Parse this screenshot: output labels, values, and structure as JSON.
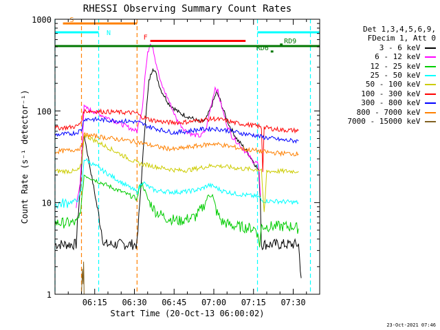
{
  "chart_data": {
    "type": "line",
    "title": "RHESSI Observing Summary Count Rates",
    "xlabel": "Start Time (20-Oct-13 06:00:02)",
    "ylabel": "Count Rate (s⁻¹ detector⁻¹)",
    "yscale": "log",
    "ylim": [
      1,
      1000
    ],
    "xlim_minutes": [
      0,
      100
    ],
    "x_ticks": [
      {
        "t": 15,
        "label": "06:15"
      },
      {
        "t": 30,
        "label": "06:30"
      },
      {
        "t": 45,
        "label": "06:45"
      },
      {
        "t": 60,
        "label": "07:00"
      },
      {
        "t": 75,
        "label": "07:15"
      },
      {
        "t": 90,
        "label": "07:30"
      }
    ],
    "y_ticks": [
      {
        "v": 1,
        "label": "1"
      },
      {
        "v": 10,
        "label": "10"
      },
      {
        "v": 100,
        "label": "100"
      },
      {
        "v": 1000,
        "label": "1000"
      }
    ],
    "legend_header": [
      "Det 1,3,4,5,6,9,",
      "FDecim 1, Att 0"
    ],
    "series": [
      {
        "name": "3 - 6 keV",
        "color": "#000000",
        "points": [
          [
            0,
            3.5
          ],
          [
            8,
            3.5
          ],
          [
            8.5,
            6
          ],
          [
            9.5,
            14
          ],
          [
            10.5,
            40
          ],
          [
            11,
            55
          ],
          [
            18.5,
            3.5
          ],
          [
            31,
            3.5
          ],
          [
            34,
            70
          ],
          [
            35.5,
            210
          ],
          [
            37,
            300
          ],
          [
            38,
            260
          ],
          [
            40,
            170
          ],
          [
            43,
            120
          ],
          [
            47,
            95
          ],
          [
            51,
            85
          ],
          [
            55,
            75
          ],
          [
            57,
            80
          ],
          [
            59,
            110
          ],
          [
            61,
            160
          ],
          [
            62,
            140
          ],
          [
            64,
            95
          ],
          [
            66,
            68
          ],
          [
            69,
            48
          ],
          [
            72,
            38
          ],
          [
            75,
            28
          ],
          [
            77,
            22
          ],
          [
            77.6,
            10
          ],
          [
            78,
            3.5
          ],
          [
            92,
            3.5
          ],
          [
            93,
            1.5
          ]
        ]
      },
      {
        "name": "6 - 12 keV",
        "color": "#ff00ff",
        "points": [
          [
            8,
            9
          ],
          [
            9.5,
            16
          ],
          [
            10.5,
            60
          ],
          [
            11,
            110
          ],
          [
            31,
            60
          ],
          [
            33,
            110
          ],
          [
            34,
            240
          ],
          [
            35,
            420
          ],
          [
            36,
            560
          ],
          [
            37,
            500
          ],
          [
            38,
            350
          ],
          [
            40,
            200
          ],
          [
            43,
            130
          ],
          [
            46,
            80
          ],
          [
            49,
            62
          ],
          [
            52,
            55
          ],
          [
            55,
            53
          ],
          [
            57,
            62
          ],
          [
            58.5,
            100
          ],
          [
            60.5,
            180
          ],
          [
            61.5,
            165
          ],
          [
            63,
            110
          ],
          [
            65,
            70
          ],
          [
            67,
            52
          ],
          [
            70,
            42
          ],
          [
            73,
            33
          ],
          [
            75,
            28
          ],
          [
            76.5,
            27
          ],
          [
            77.2,
            20
          ],
          [
            77.6,
            12
          ]
        ]
      },
      {
        "name": "12 - 25 keV",
        "color": "#00cc00",
        "points": [
          [
            0,
            6
          ],
          [
            5,
            6
          ],
          [
            8,
            6
          ],
          [
            9,
            6.5
          ],
          [
            10,
            10
          ],
          [
            11,
            20
          ],
          [
            31,
            11
          ],
          [
            32,
            15
          ],
          [
            33,
            16
          ],
          [
            35,
            11
          ],
          [
            38,
            8
          ],
          [
            42,
            6.8
          ],
          [
            47,
            6.3
          ],
          [
            53,
            7
          ],
          [
            56,
            9
          ],
          [
            58,
            12
          ],
          [
            59.5,
            12
          ],
          [
            61,
            8
          ],
          [
            63,
            6.2
          ],
          [
            67,
            5.6
          ],
          [
            73,
            5.3
          ],
          [
            76,
            5.2
          ],
          [
            77.3,
            3.5
          ],
          [
            78,
            5.5
          ],
          [
            90,
            5.5
          ],
          [
            92,
            5.2
          ]
        ]
      },
      {
        "name": "25 - 50 keV",
        "color": "#00ffff",
        "points": [
          [
            0,
            9.5
          ],
          [
            5,
            10
          ],
          [
            8,
            10.5
          ],
          [
            9,
            11
          ],
          [
            10,
            14
          ],
          [
            11,
            30
          ],
          [
            31,
            13
          ],
          [
            33,
            17
          ],
          [
            35,
            15
          ],
          [
            38,
            13.5
          ],
          [
            45,
            13
          ],
          [
            50,
            13.2
          ],
          [
            55,
            14
          ],
          [
            58,
            15.5
          ],
          [
            60,
            15
          ],
          [
            63,
            13.5
          ],
          [
            68,
            12.5
          ],
          [
            73,
            12
          ],
          [
            77,
            11.5
          ],
          [
            78,
            10.5
          ],
          [
            85,
            10.3
          ],
          [
            92,
            10
          ]
        ]
      },
      {
        "name": "50 - 100 keV",
        "color": "#cccc00",
        "points": [
          [
            0,
            22
          ],
          [
            5,
            22
          ],
          [
            8,
            22
          ],
          [
            9,
            23
          ],
          [
            10,
            26
          ],
          [
            11,
            55
          ],
          [
            31,
            27
          ],
          [
            34,
            26
          ],
          [
            40,
            24
          ],
          [
            46,
            22.5
          ],
          [
            50,
            22.5
          ],
          [
            55,
            24
          ],
          [
            60,
            25.5
          ],
          [
            65,
            24.5
          ],
          [
            70,
            23.5
          ],
          [
            75,
            23
          ],
          [
            78,
            23
          ],
          [
            79,
            7
          ],
          [
            80,
            22
          ],
          [
            85,
            22
          ],
          [
            92,
            22
          ]
        ]
      },
      {
        "name": "100 - 300 keV",
        "color": "#ff0000",
        "points": [
          [
            0,
            65
          ],
          [
            5,
            66
          ],
          [
            8,
            68
          ],
          [
            9,
            70
          ],
          [
            10,
            78
          ],
          [
            11,
            100
          ],
          [
            31,
            95
          ],
          [
            32,
            88
          ],
          [
            36,
            80
          ],
          [
            42,
            75
          ],
          [
            48,
            75
          ],
          [
            52,
            77
          ],
          [
            56,
            80
          ],
          [
            60,
            82
          ],
          [
            64,
            79
          ],
          [
            68,
            74
          ],
          [
            74,
            70
          ],
          [
            77,
            68
          ],
          [
            78,
            65
          ],
          [
            78.5,
            22
          ],
          [
            79,
            66
          ],
          [
            82,
            64
          ],
          [
            86,
            62
          ],
          [
            92,
            61
          ]
        ]
      },
      {
        "name": "300 - 800 keV",
        "color": "#0000ff",
        "points": [
          [
            0,
            55
          ],
          [
            5,
            56
          ],
          [
            8,
            58
          ],
          [
            10,
            62
          ],
          [
            11,
            82
          ],
          [
            31,
            76
          ],
          [
            35,
            68
          ],
          [
            40,
            62
          ],
          [
            45,
            58
          ],
          [
            50,
            60
          ],
          [
            55,
            63
          ],
          [
            60,
            64
          ],
          [
            64,
            62
          ],
          [
            68,
            59
          ],
          [
            72,
            56
          ],
          [
            76,
            54
          ],
          [
            78,
            52
          ],
          [
            82,
            50
          ],
          [
            86,
            48
          ],
          [
            92,
            47
          ]
        ]
      },
      {
        "name": "800 - 7000 keV",
        "color": "#ff8000",
        "points": [
          [
            0,
            36
          ],
          [
            5,
            37
          ],
          [
            8,
            38
          ],
          [
            10,
            40
          ],
          [
            11,
            55
          ],
          [
            31,
            46
          ],
          [
            35,
            43
          ],
          [
            40,
            40
          ],
          [
            45,
            38
          ],
          [
            50,
            40
          ],
          [
            55,
            42
          ],
          [
            60,
            44
          ],
          [
            64,
            42
          ],
          [
            68,
            40
          ],
          [
            72,
            38
          ],
          [
            76,
            37
          ],
          [
            78,
            36
          ],
          [
            82,
            35
          ],
          [
            86,
            34.5
          ],
          [
            92,
            34
          ]
        ]
      },
      {
        "name": "7000 - 15000 keV",
        "color": "#806020",
        "points": [
          [
            10,
            1
          ],
          [
            10.3,
            2
          ],
          [
            10.6,
            1.3
          ],
          [
            10.8,
            2
          ],
          [
            11,
            1
          ]
        ]
      }
    ],
    "attenuator_bars": [
      {
        "label": "S",
        "color": "#ff8000",
        "start": 3,
        "end": 31,
        "level": 900,
        "vlines": [
          10,
          31
        ]
      },
      {
        "label": "N",
        "color": "#00ffff",
        "start": 0,
        "end": 16.5,
        "level": 720,
        "vlines": [
          0,
          16.5
        ]
      },
      {
        "label": "N",
        "color": "#00ffff",
        "start": 76.5,
        "end": 100,
        "level": 720,
        "vlines": [
          76.5,
          96.5
        ]
      },
      {
        "label": "F",
        "color": "#ff0000",
        "start": 36,
        "end": 72,
        "level": 580
      },
      {
        "label": "",
        "color": "#007700",
        "start": 0,
        "end": 100,
        "level": 510
      },
      {
        "label": "RD6",
        "color": "#007700",
        "start": 81.5,
        "end": 82.5,
        "level": 445
      },
      {
        "label": "RD9",
        "color": "#007700",
        "start": 85,
        "end": 86,
        "level": 530
      }
    ]
  },
  "footer_date": "23-Oct-2021 07:46"
}
